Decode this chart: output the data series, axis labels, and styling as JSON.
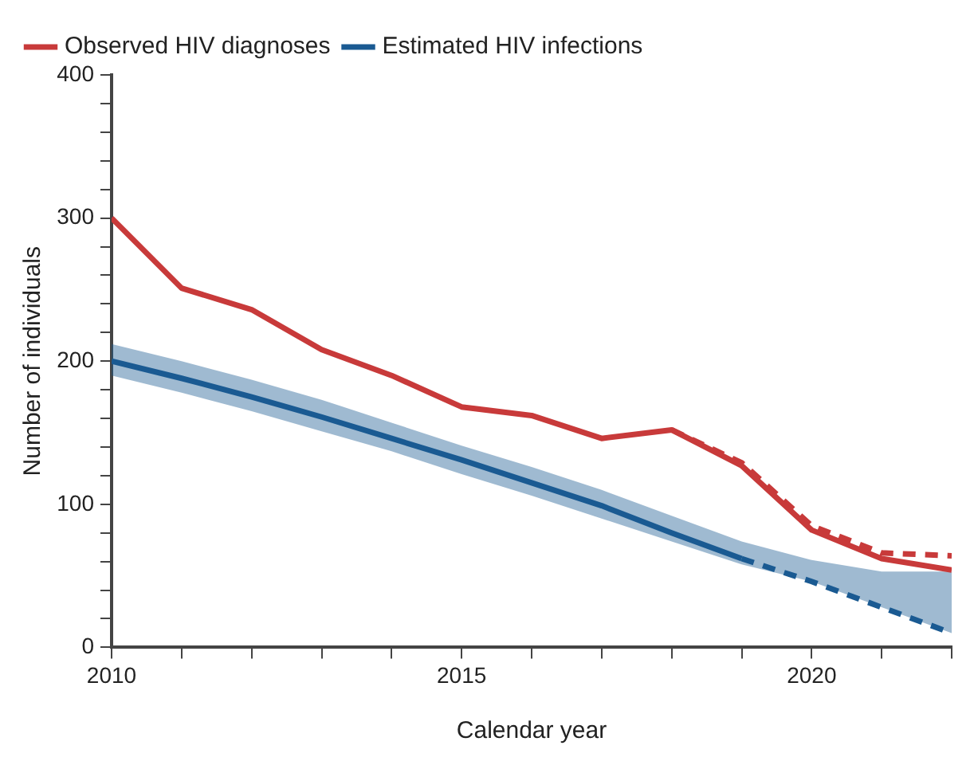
{
  "chart_data": {
    "type": "line",
    "xlabel": "Calendar year",
    "ylabel": "Number of individuals",
    "x": [
      2010,
      2011,
      2012,
      2013,
      2014,
      2015,
      2016,
      2017,
      2018,
      2019,
      2020,
      2021,
      2022
    ],
    "xlim": [
      2010,
      2022
    ],
    "xticks": [
      2010,
      {
        "value": 2011,
        "label": null
      },
      {
        "value": 2012,
        "label": null
      },
      {
        "value": 2013,
        "label": null
      },
      {
        "value": 2014,
        "label": null
      },
      2015,
      {
        "value": 2016,
        "label": null
      },
      {
        "value": 2017,
        "label": null
      },
      {
        "value": 2018,
        "label": null
      },
      {
        "value": 2019,
        "label": null
      },
      2020,
      {
        "value": 2021,
        "label": null
      },
      {
        "value": 2022,
        "label": null
      }
    ],
    "ylim": [
      0,
      400
    ],
    "yticks": [
      0,
      {
        "value": 20,
        "label": null
      },
      {
        "value": 40,
        "label": null
      },
      {
        "value": 60,
        "label": null
      },
      {
        "value": 80,
        "label": null
      },
      100,
      {
        "value": 120,
        "label": null
      },
      {
        "value": 140,
        "label": null
      },
      {
        "value": 160,
        "label": null
      },
      {
        "value": 180,
        "label": null
      },
      200,
      {
        "value": 220,
        "label": null
      },
      {
        "value": 240,
        "label": null
      },
      {
        "value": 260,
        "label": null
      },
      {
        "value": 280,
        "label": null
      },
      300,
      {
        "value": 320,
        "label": null
      },
      {
        "value": 340,
        "label": null
      },
      {
        "value": 360,
        "label": null
      },
      {
        "value": 380,
        "label": null
      },
      400
    ],
    "grid": false,
    "legend": "top left",
    "marker": "none",
    "series": [
      {
        "name": "Observed HIV diagnoses",
        "color": "#c83a3a",
        "line_style": "solid",
        "values": [
          300,
          251,
          236,
          208,
          190,
          168,
          162,
          146,
          152,
          127,
          82,
          62,
          54
        ]
      },
      {
        "color": "#c83a3a",
        "line_style": "dashed",
        "values": [
          null,
          null,
          null,
          null,
          null,
          null,
          null,
          null,
          152,
          129,
          85,
          66,
          64
        ]
      },
      {
        "name": "Estimated HIV infections",
        "color": "#1a5a92",
        "line_style": "solid",
        "values": [
          200,
          188,
          175,
          161,
          146,
          131,
          115,
          99,
          80,
          62,
          null,
          null,
          null
        ],
        "lower": [
          190,
          178,
          165,
          151,
          137,
          121,
          106,
          90,
          74,
          58,
          46,
          28,
          10
        ],
        "upper": [
          212,
          200,
          187,
          173,
          157,
          141,
          126,
          110,
          92,
          74,
          61,
          53,
          53
        ]
      },
      {
        "color": "#1a5a92",
        "line_style": "dashed",
        "values": [
          null,
          null,
          null,
          null,
          null,
          null,
          null,
          null,
          null,
          62,
          46,
          28,
          10
        ]
      }
    ]
  }
}
